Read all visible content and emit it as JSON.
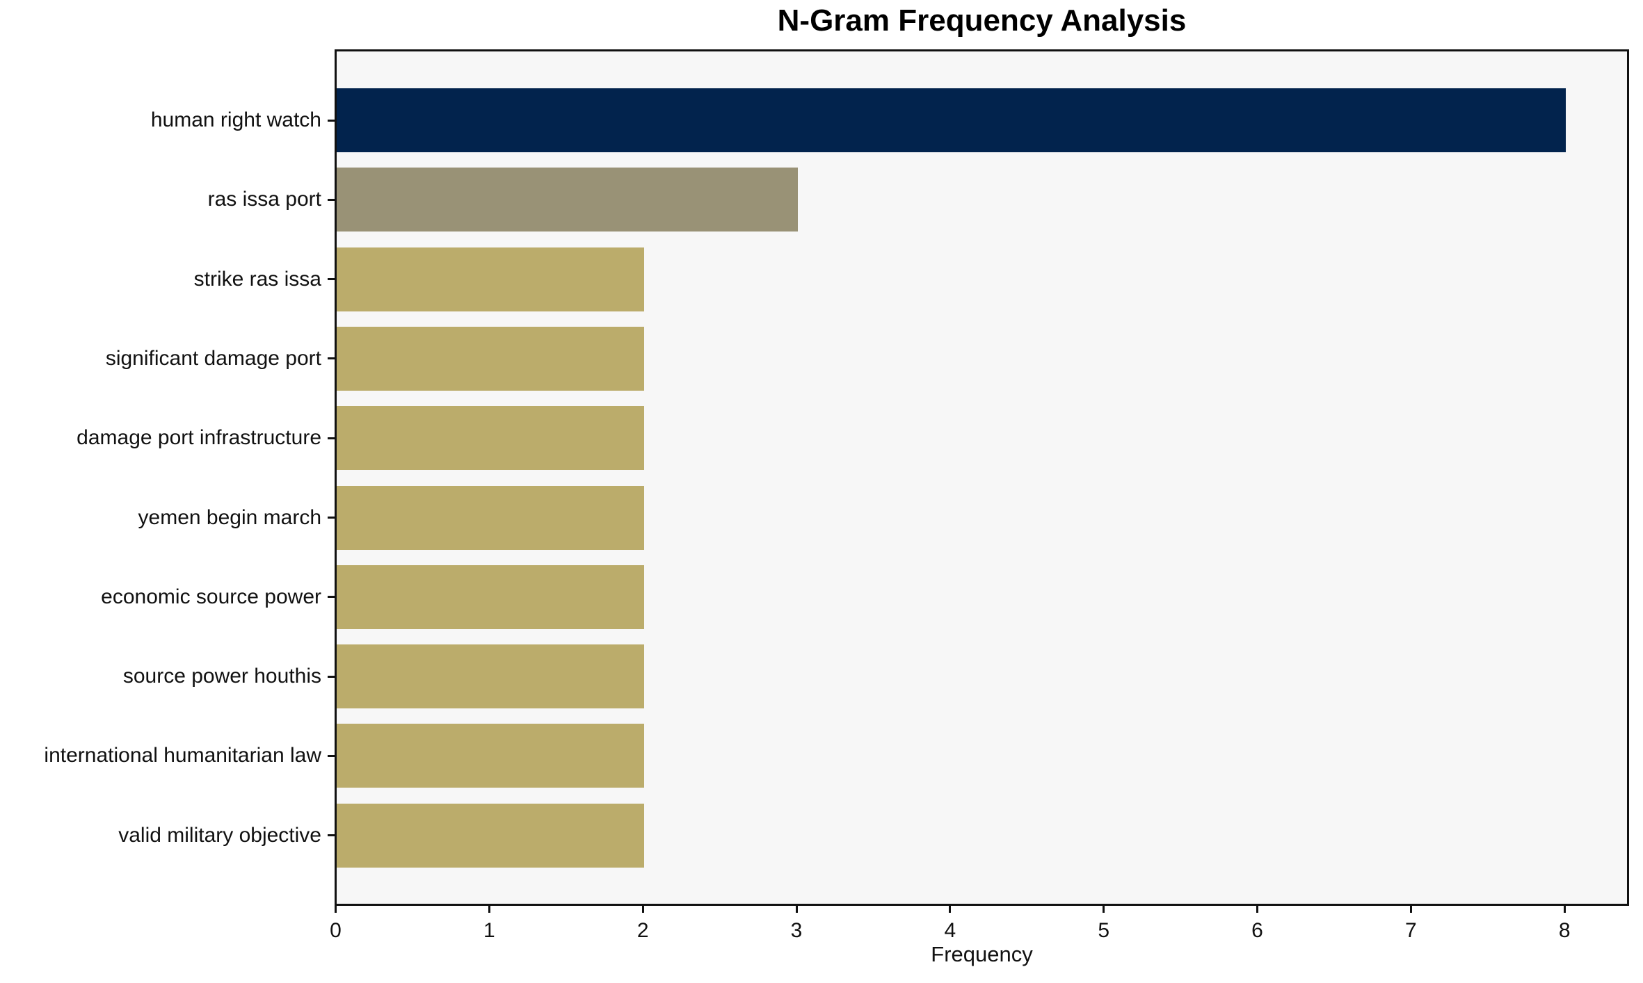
{
  "chart_data": {
    "type": "bar",
    "orientation": "horizontal",
    "title": "N-Gram Frequency Analysis",
    "xlabel": "Frequency",
    "ylabel": "",
    "categories": [
      "human right watch",
      "ras issa port",
      "strike ras issa",
      "significant damage port",
      "damage port infrastructure",
      "yemen begin march",
      "economic source power",
      "source power houthis",
      "international humanitarian law",
      "valid military objective"
    ],
    "values": [
      8,
      3,
      2,
      2,
      2,
      2,
      2,
      2,
      2,
      2
    ],
    "bar_colors": [
      "#02234d",
      "#999276",
      "#bbac6b",
      "#bbac6b",
      "#bbac6b",
      "#bbac6b",
      "#bbac6b",
      "#bbac6b",
      "#bbac6b",
      "#bbac6b"
    ],
    "xticks": [
      0,
      1,
      2,
      3,
      4,
      5,
      6,
      7,
      8
    ],
    "xlim": [
      0,
      8.4
    ],
    "grid": false,
    "legend": null,
    "plot_background": "#f7f7f7",
    "spine_color": "#111111",
    "text_color": "#111111",
    "title_color": "#000000"
  }
}
